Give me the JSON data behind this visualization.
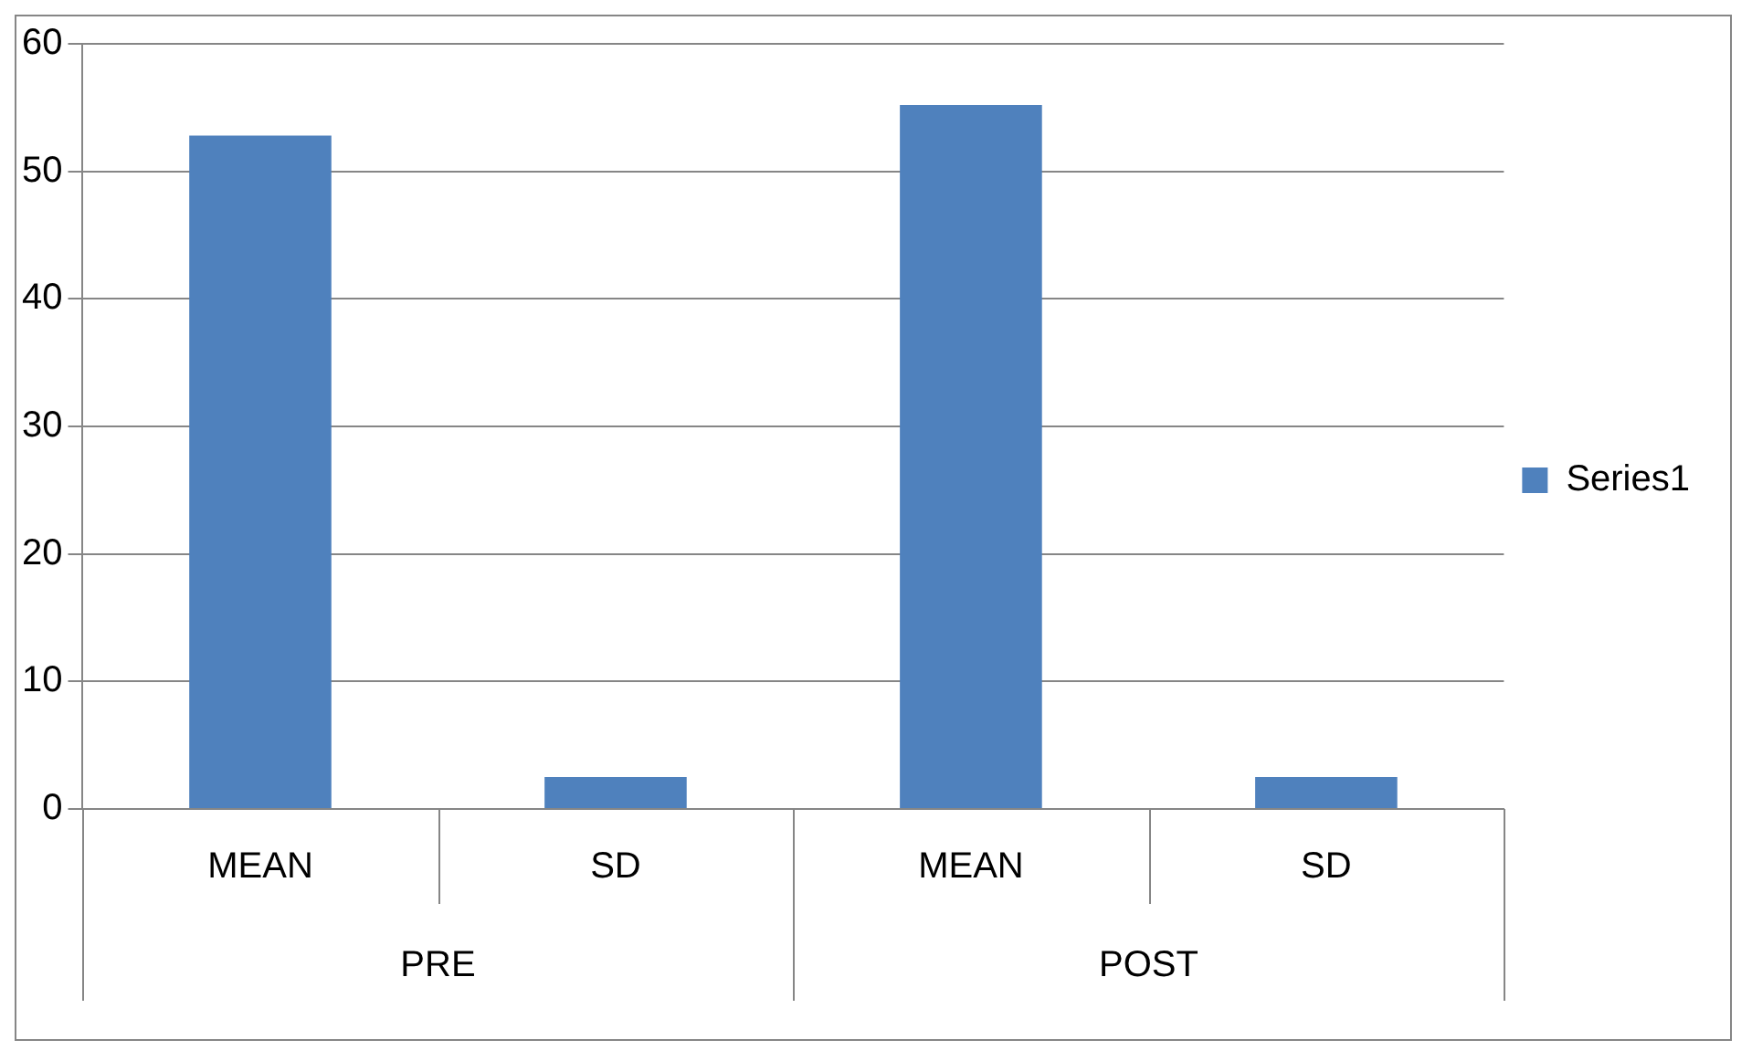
{
  "chart_data": {
    "type": "bar",
    "categories": [
      "MEAN",
      "SD",
      "MEAN",
      "SD"
    ],
    "annotations": [
      "PRE",
      "POST"
    ],
    "series": [
      {
        "name": "Series1",
        "color": "#4f81bd",
        "values": [
          52.8,
          2.5,
          55.2,
          2.5
        ]
      }
    ],
    "ylim": [
      0,
      60
    ],
    "yticks": [
      0,
      10,
      20,
      30,
      40,
      50,
      60
    ],
    "grid": "y",
    "legend": "right"
  }
}
